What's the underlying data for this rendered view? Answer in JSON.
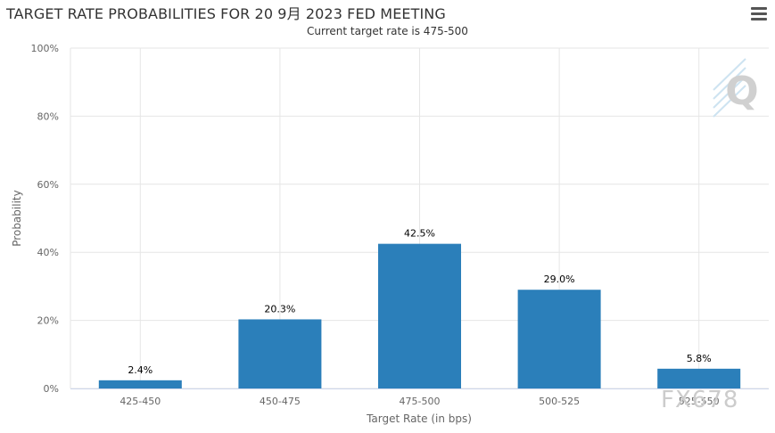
{
  "header": {
    "title": "TARGET RATE PROBABILITIES FOR 20 9月 2023 FED MEETING",
    "subtitle": "Current target rate is 475-500",
    "menu_icon": "hamburger-menu-icon"
  },
  "watermark": "FX678",
  "logo": "Q",
  "colors": {
    "bar": "#2b7fba",
    "grid": "#e6e6e6",
    "axis": "#ccd6eb"
  },
  "chart_data": {
    "type": "bar",
    "title": "TARGET RATE PROBABILITIES FOR 20 9月 2023 FED MEETING",
    "subtitle": "Current target rate is 475-500",
    "categories": [
      "425-450",
      "450-475",
      "475-500",
      "500-525",
      "525-550"
    ],
    "values": [
      2.4,
      20.3,
      42.5,
      29.0,
      5.8
    ],
    "data_labels": [
      "2.4%",
      "20.3%",
      "42.5%",
      "29.0%",
      "5.8%"
    ],
    "xlabel": "Target Rate (in bps)",
    "ylabel": "Probability",
    "ylim": [
      0,
      100
    ],
    "yticks": [
      "0%",
      "20%",
      "40%",
      "60%",
      "80%",
      "100%"
    ],
    "yticks_values": [
      0,
      20,
      40,
      60,
      80,
      100
    ],
    "grid": true,
    "legend": "none"
  }
}
